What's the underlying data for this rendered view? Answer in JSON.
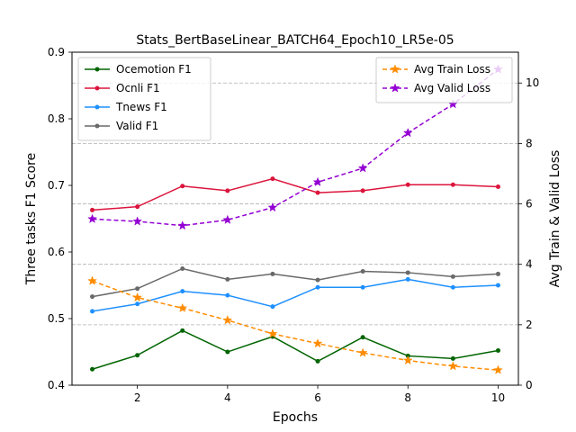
{
  "chart_data": {
    "type": "line",
    "title": "Stats_BertBaseLinear_BATCH64_Epoch10_LR5e-05",
    "xlabel": "Epochs",
    "ylabel_left": "Three tasks F1 Score",
    "ylabel_right": "Avg Train & Valid Loss",
    "x": [
      1,
      2,
      3,
      4,
      5,
      6,
      7,
      8,
      9,
      10
    ],
    "xlim": [
      0.55,
      10.45
    ],
    "xticks": [
      2,
      4,
      6,
      8,
      10
    ],
    "ylim_left": [
      0.4,
      0.9
    ],
    "yticks_left": [
      0.4,
      0.5,
      0.6,
      0.7,
      0.8,
      0.9
    ],
    "ylim_right": [
      0,
      11.02
    ],
    "yticks_right": [
      0,
      2,
      4,
      6,
      8,
      10
    ],
    "grid": "right axis, dashed horizontal",
    "left_legend_placement": "upper-left",
    "right_legend_placement": "upper-right",
    "series_left": [
      {
        "name": "Ocemotion F1",
        "color": "#006400",
        "style": "solid",
        "marker": "circle",
        "values": [
          0.424,
          0.445,
          0.482,
          0.45,
          0.473,
          0.436,
          0.472,
          0.444,
          0.44,
          0.452
        ]
      },
      {
        "name": "Ocnli F1",
        "color": "#dc143c",
        "style": "solid",
        "marker": "circle",
        "values": [
          0.663,
          0.668,
          0.699,
          0.692,
          0.71,
          0.689,
          0.692,
          0.701,
          0.701,
          0.698
        ]
      },
      {
        "name": "Tnews F1",
        "color": "#1e90ff",
        "style": "solid",
        "marker": "circle",
        "values": [
          0.511,
          0.522,
          0.541,
          0.535,
          0.518,
          0.547,
          0.547,
          0.559,
          0.547,
          0.55
        ]
      },
      {
        "name": "Valid F1",
        "color": "#696969",
        "style": "solid",
        "marker": "circle",
        "values": [
          0.533,
          0.545,
          0.575,
          0.559,
          0.567,
          0.558,
          0.571,
          0.569,
          0.563,
          0.567
        ]
      }
    ],
    "series_right": [
      {
        "name": "Avg Train Loss",
        "color": "#ff8c00",
        "style": "dashed",
        "marker": "star",
        "values": [
          3.45,
          2.9,
          2.55,
          2.15,
          1.7,
          1.38,
          1.07,
          0.82,
          0.63,
          0.5
        ]
      },
      {
        "name": "Avg Valid Loss",
        "color": "#9400d3",
        "style": "dashed",
        "marker": "star",
        "values": [
          5.5,
          5.42,
          5.28,
          5.47,
          5.88,
          6.72,
          7.18,
          8.35,
          9.3,
          10.45
        ]
      }
    ]
  }
}
